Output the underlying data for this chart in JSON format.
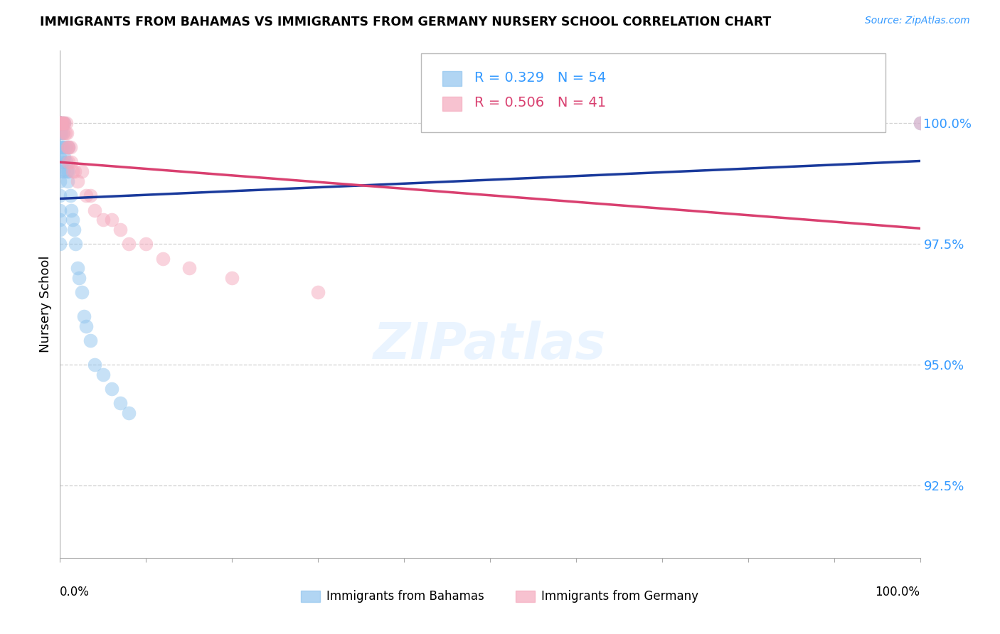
{
  "title": "IMMIGRANTS FROM BAHAMAS VS IMMIGRANTS FROM GERMANY NURSERY SCHOOL CORRELATION CHART",
  "source": "Source: ZipAtlas.com",
  "ylabel": "Nursery School",
  "yticks": [
    92.5,
    95.0,
    97.5,
    100.0
  ],
  "ytick_labels": [
    "92.5%",
    "95.0%",
    "97.5%",
    "100.0%"
  ],
  "ylim": [
    91.0,
    101.5
  ],
  "xlim": [
    0.0,
    1.0
  ],
  "R_bahamas": 0.329,
  "N_bahamas": 54,
  "R_germany": 0.506,
  "N_germany": 41,
  "color_bahamas": "#90C4EE",
  "color_germany": "#F4A8BC",
  "line_color_bahamas": "#1A3A9C",
  "line_color_germany": "#D94070",
  "legend_label_bahamas": "Immigrants from Bahamas",
  "legend_label_germany": "Immigrants from Germany",
  "bahamas_x": [
    0.0,
    0.0,
    0.0,
    0.0,
    0.0,
    0.0,
    0.0,
    0.0,
    0.0,
    0.0,
    0.0,
    0.0,
    0.0,
    0.0,
    0.0,
    0.0,
    0.0,
    0.0,
    0.0,
    0.0,
    0.001,
    0.001,
    0.002,
    0.002,
    0.003,
    0.003,
    0.004,
    0.004,
    0.005,
    0.005,
    0.006,
    0.007,
    0.008,
    0.009,
    0.01,
    0.01,
    0.012,
    0.013,
    0.015,
    0.016,
    0.018,
    0.02,
    0.022,
    0.025,
    0.028,
    0.03,
    0.035,
    0.04,
    0.05,
    0.06,
    0.07,
    0.08,
    0.9,
    1.0
  ],
  "bahamas_y": [
    100.0,
    100.0,
    100.0,
    100.0,
    100.0,
    100.0,
    100.0,
    100.0,
    100.0,
    100.0,
    99.8,
    99.5,
    99.3,
    99.0,
    98.8,
    98.5,
    98.2,
    98.0,
    97.8,
    97.5,
    100.0,
    99.8,
    100.0,
    99.5,
    99.8,
    99.2,
    99.5,
    99.0,
    100.0,
    99.3,
    99.5,
    99.2,
    99.0,
    98.8,
    99.5,
    99.0,
    98.5,
    98.2,
    98.0,
    97.8,
    97.5,
    97.0,
    96.8,
    96.5,
    96.0,
    95.8,
    95.5,
    95.0,
    94.8,
    94.5,
    94.2,
    94.0,
    100.0,
    100.0
  ],
  "germany_x": [
    0.0,
    0.0,
    0.0,
    0.0,
    0.0,
    0.0,
    0.0,
    0.0,
    0.0,
    0.0,
    0.001,
    0.002,
    0.003,
    0.004,
    0.004,
    0.005,
    0.006,
    0.007,
    0.008,
    0.009,
    0.01,
    0.01,
    0.012,
    0.013,
    0.015,
    0.017,
    0.02,
    0.025,
    0.03,
    0.035,
    0.04,
    0.05,
    0.06,
    0.07,
    0.08,
    0.1,
    0.12,
    0.15,
    0.2,
    0.3,
    1.0
  ],
  "germany_y": [
    100.0,
    100.0,
    100.0,
    100.0,
    100.0,
    100.0,
    100.0,
    100.0,
    100.0,
    100.0,
    100.0,
    100.0,
    100.0,
    100.0,
    99.8,
    100.0,
    99.8,
    100.0,
    99.8,
    99.5,
    99.5,
    99.2,
    99.5,
    99.2,
    99.0,
    99.0,
    98.8,
    99.0,
    98.5,
    98.5,
    98.2,
    98.0,
    98.0,
    97.8,
    97.5,
    97.5,
    97.2,
    97.0,
    96.8,
    96.5,
    100.0
  ]
}
